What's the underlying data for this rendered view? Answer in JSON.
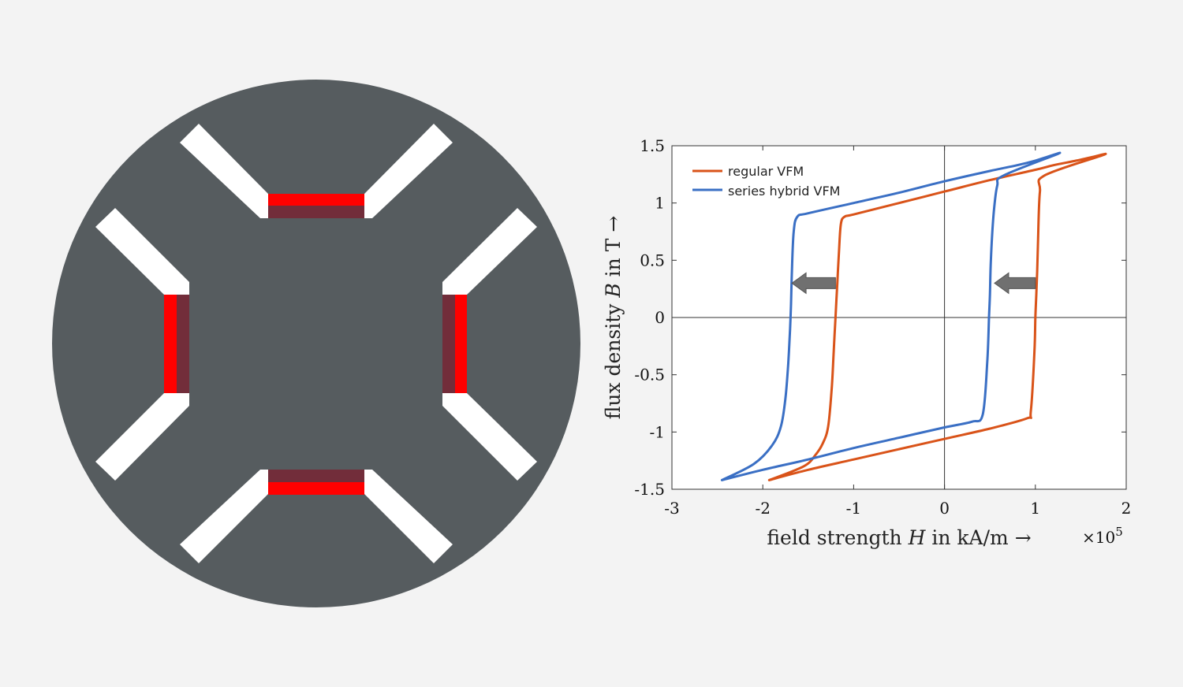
{
  "colors": {
    "background": "#f3f3f3",
    "rotor": "#565c5f",
    "barrier": "#ffffff",
    "magnet_bright": "#ff0000",
    "magnet_dark": "#722d3a",
    "regular_series": "#d95319",
    "hybrid_series": "#3a6fc4",
    "arrow": "#707070"
  },
  "rotor_diagram": {
    "pole_count": 4
  },
  "chart_data": {
    "type": "line",
    "xlabel_prefix": "field strength ",
    "xlabel_var": "H",
    "xlabel_suffix": " in kA/m →",
    "ylabel_prefix": "flux density ",
    "ylabel_var": "B",
    "ylabel_suffix": " in T →",
    "x_multiplier_base": "×10",
    "x_multiplier_exp": "5",
    "xlim": [
      -3,
      2
    ],
    "ylim": [
      -1.5,
      1.5
    ],
    "xticks": [
      -3,
      -2,
      -1,
      0,
      1,
      2
    ],
    "xtick_labels": [
      "-3",
      "-2",
      "-1",
      "0",
      "1",
      "2"
    ],
    "yticks": [
      1.5,
      1,
      0.5,
      0,
      -0.5,
      -1,
      -1.5
    ],
    "ytick_labels": [
      "1.5",
      "1",
      "0.5",
      "0",
      "-0.5",
      "-1",
      "-1.5"
    ],
    "grid": false,
    "legend_position": "top-left",
    "series": [
      {
        "name": "regular VFM",
        "color": "#d95319",
        "x": [
          -1.93,
          -1.55,
          -1.42,
          -1.34,
          -1.28,
          -1.24,
          -1.22,
          -1.2,
          -1.18,
          -1.16,
          -1.14,
          -1.1,
          -1.0,
          -0.5,
          0,
          0.5,
          1.0,
          1.2,
          1.45,
          1.62,
          1.75,
          1.1,
          1.05,
          1.03,
          1.02,
          1.01,
          1.0,
          0.99,
          0.95,
          0.91,
          0.5,
          0,
          -0.5,
          -1.0,
          -1.5,
          -1.93
        ],
        "y": [
          -1.42,
          -1.3,
          -1.2,
          -1.1,
          -0.95,
          -0.6,
          -0.3,
          0,
          0.3,
          0.6,
          0.82,
          0.88,
          0.9,
          1.0,
          1.1,
          1.2,
          1.29,
          1.33,
          1.37,
          1.4,
          1.42,
          1.24,
          1.1,
          0.7,
          0.4,
          0.2,
          0,
          -0.3,
          -0.82,
          -0.88,
          -0.97,
          -1.06,
          -1.15,
          -1.24,
          -1.33,
          -1.42
        ]
      },
      {
        "name": "series hybrid VFM",
        "color": "#3a6fc4",
        "x": [
          -2.45,
          -2.1,
          -1.9,
          -1.8,
          -1.75,
          -1.72,
          -1.7,
          -1.69,
          -1.68,
          -1.66,
          -1.62,
          -1.5,
          -1.0,
          -0.5,
          0,
          0.5,
          0.8,
          1.0,
          1.12,
          1.25,
          0.65,
          0.58,
          0.54,
          0.51,
          0.5,
          0.49,
          0.47,
          0.42,
          0.3,
          0,
          -0.5,
          -1.0,
          -1.5,
          -2.0,
          -2.45
        ],
        "y": [
          -1.42,
          -1.28,
          -1.12,
          -0.95,
          -0.7,
          -0.4,
          -0.1,
          0.1,
          0.4,
          0.75,
          0.88,
          0.91,
          1.0,
          1.09,
          1.19,
          1.28,
          1.33,
          1.37,
          1.4,
          1.43,
          1.24,
          1.15,
          0.9,
          0.5,
          0.2,
          0,
          -0.4,
          -0.85,
          -0.91,
          -0.96,
          -1.05,
          -1.14,
          -1.24,
          -1.33,
          -1.42
        ]
      }
    ],
    "annotations": [
      {
        "type": "arrow",
        "direction": "left",
        "x_from": -1.2,
        "x_to": -1.68,
        "y": 0.3
      },
      {
        "type": "arrow",
        "direction": "left",
        "x_from": 1.0,
        "x_to": 0.55,
        "y": 0.3
      }
    ]
  }
}
